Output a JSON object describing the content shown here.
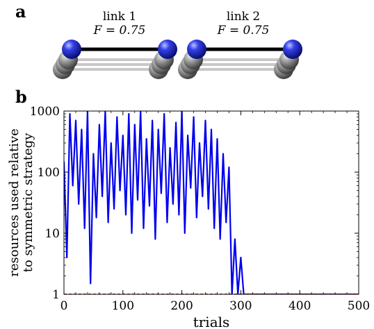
{
  "panel_a": {
    "letter": "a",
    "links": [
      {
        "name": "link 1",
        "fidelity_label": "F = 0.75",
        "fidelity": 0.75
      },
      {
        "name": "link 2",
        "fidelity_label": "F = 0.75",
        "fidelity": 0.75
      }
    ]
  },
  "panel_b": {
    "letter": "b"
  },
  "chart_data": {
    "type": "line",
    "title": "",
    "xlabel": "trials",
    "ylabel_lines": [
      "resources used relative",
      "to symmetric strategy"
    ],
    "xlim": [
      0,
      500
    ],
    "ylim": [
      1,
      1000
    ],
    "yscale": "log",
    "xticks": [
      "0",
      "100",
      "200",
      "300",
      "400",
      "500"
    ],
    "yticks": [
      "1",
      "10",
      "100",
      "1000"
    ],
    "grid": false,
    "legend": "none",
    "colors": {
      "series": "#0000ee",
      "reference": "#dd0000"
    },
    "series": [
      {
        "style": "solid",
        "x": [
          0,
          5,
          10,
          15,
          20,
          25,
          30,
          35,
          40,
          45,
          50,
          55,
          60,
          65,
          70,
          75,
          80,
          85,
          90,
          95,
          100,
          105,
          110,
          115,
          120,
          125,
          130,
          135,
          140,
          145,
          150,
          155,
          160,
          165,
          170,
          175,
          180,
          185,
          190,
          195,
          200,
          205,
          210,
          215,
          220,
          225,
          230,
          235,
          240,
          245,
          250,
          255,
          260,
          265,
          270,
          275,
          280,
          285,
          290,
          295,
          300,
          305,
          310,
          320,
          360,
          400,
          450,
          500
        ],
        "y": [
          150,
          4,
          900,
          60,
          700,
          30,
          500,
          12,
          1000,
          1.5,
          200,
          18,
          600,
          40,
          1000,
          15,
          300,
          25,
          800,
          50,
          400,
          20,
          900,
          10,
          600,
          35,
          1000,
          12,
          350,
          28,
          700,
          8,
          500,
          45,
          900,
          15,
          250,
          30,
          650,
          20,
          1000,
          10,
          400,
          55,
          800,
          18,
          300,
          40,
          700,
          25,
          500,
          12,
          350,
          8,
          200,
          15,
          120,
          1,
          8,
          1,
          4,
          1,
          1,
          1,
          1,
          1,
          1,
          1
        ]
      },
      {
        "style": "dashed",
        "x": [
          0,
          500
        ],
        "y": [
          1,
          1
        ]
      }
    ]
  }
}
